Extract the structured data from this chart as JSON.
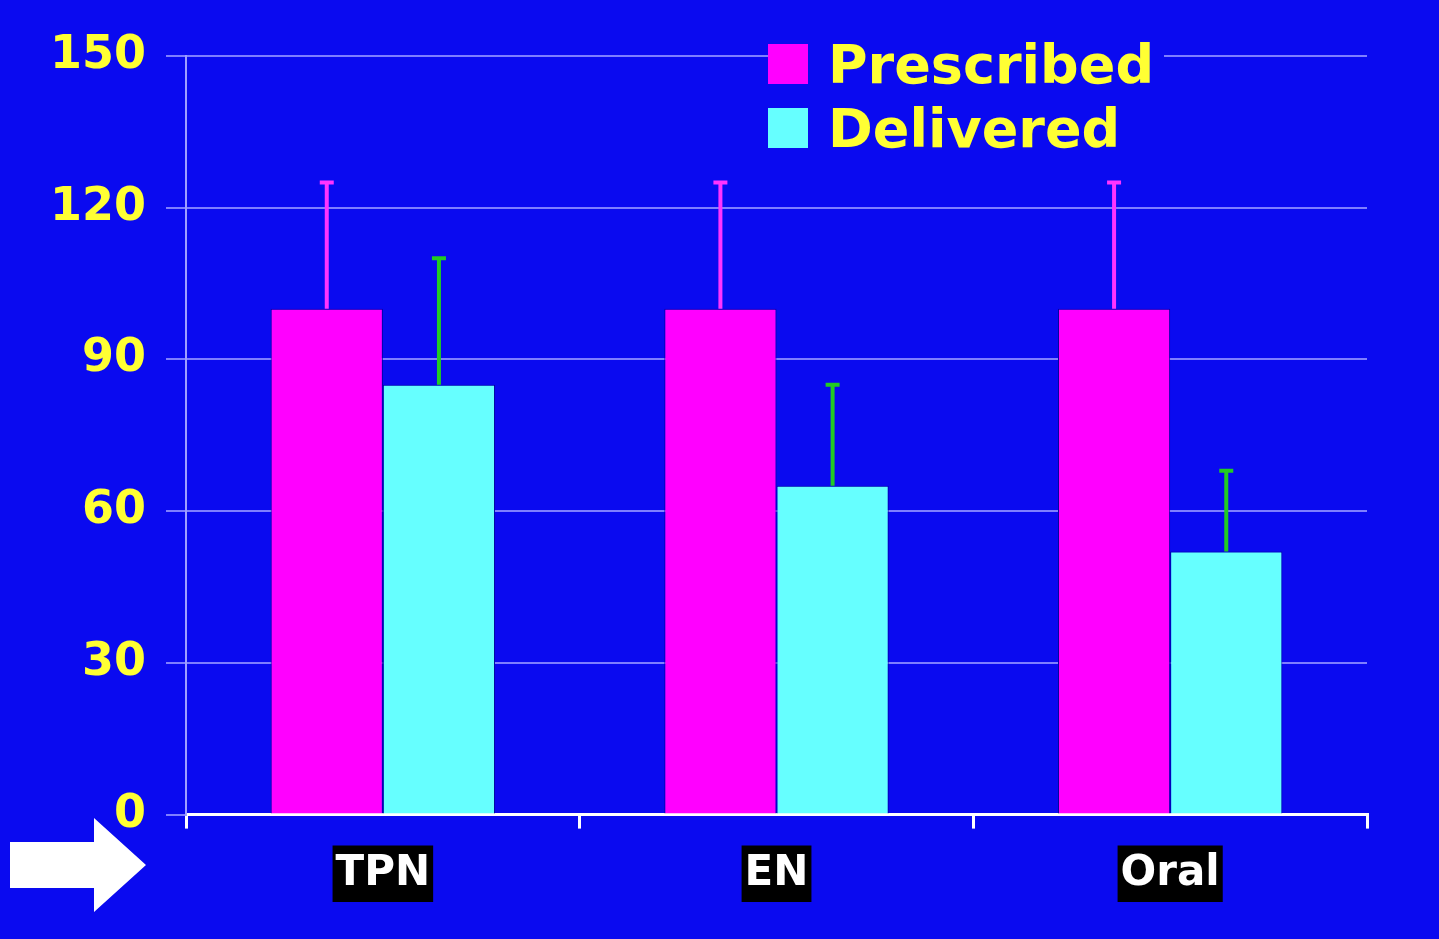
{
  "chart_data": {
    "type": "bar",
    "categories": [
      "TPN",
      "EN",
      "Oral"
    ],
    "series": [
      {
        "name": "Prescribed",
        "color": "#ff00ff",
        "values": [
          100,
          100,
          100
        ],
        "errors": [
          [
            100,
            125
          ],
          [
            100,
            125
          ],
          [
            100,
            125
          ]
        ]
      },
      {
        "name": "Delivered",
        "color": "#66ffff",
        "values": [
          85,
          65,
          52
        ],
        "errors": [
          [
            85,
            110
          ],
          [
            65,
            85
          ],
          [
            52,
            68
          ]
        ]
      }
    ],
    "ylim": [
      0,
      150
    ],
    "yticks": [
      0,
      30,
      60,
      90,
      120,
      150
    ],
    "grid": "y",
    "legend": "top right"
  }
}
